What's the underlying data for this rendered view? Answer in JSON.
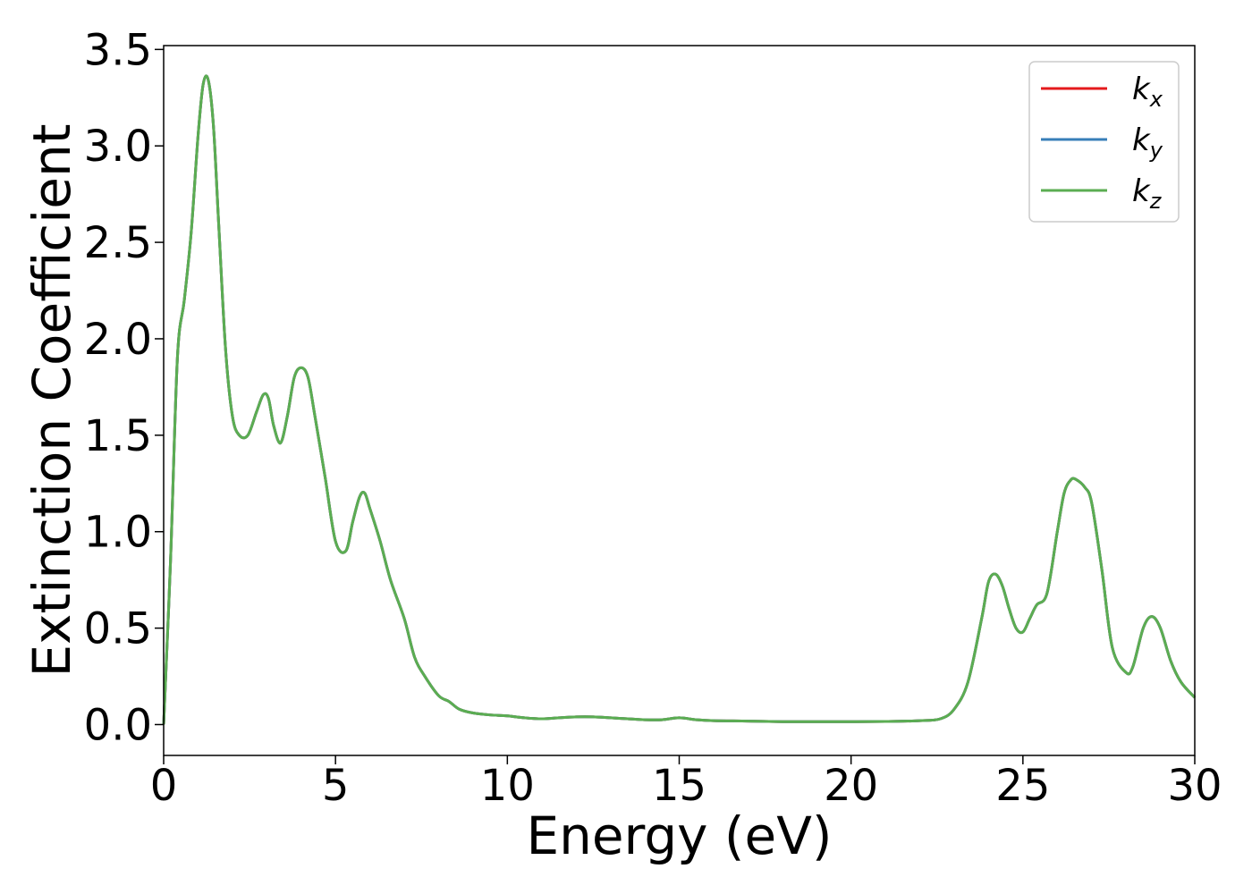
{
  "chart_data": {
    "type": "line",
    "title": "",
    "xlabel": "Energy (eV)",
    "ylabel": "Extinction Coefficient",
    "xlim": [
      0,
      30
    ],
    "ylim": [
      -0.16,
      3.52
    ],
    "xticks": [
      "0",
      "5",
      "10",
      "15",
      "20",
      "25",
      "30"
    ],
    "yticks": [
      "0.0",
      "0.5",
      "1.0",
      "1.5",
      "2.0",
      "2.5",
      "3.0",
      "3.5"
    ],
    "grid": false,
    "legend_position": "top-right",
    "series": [
      {
        "name": "k",
        "sub": "x",
        "color": "#e41a1c",
        "x": [
          0,
          0.2,
          0.4,
          0.6,
          0.8,
          1.0,
          1.15,
          1.3,
          1.45,
          1.6,
          1.8,
          2.0,
          2.2,
          2.45,
          2.7,
          2.9,
          3.05,
          3.2,
          3.4,
          3.6,
          3.8,
          4.0,
          4.2,
          4.4,
          4.7,
          5.0,
          5.3,
          5.5,
          5.7,
          5.85,
          6.0,
          6.3,
          6.6,
          7.0,
          7.3,
          7.6,
          8.0,
          8.3,
          8.6,
          9.0,
          9.5,
          10.0,
          10.5,
          11.0,
          11.5,
          12.0,
          12.5,
          13.0,
          13.5,
          14.0,
          14.5,
          15.0,
          15.5,
          16.0,
          17.0,
          18.0,
          19.0,
          20.0,
          21.0,
          22.0,
          22.6,
          23.0,
          23.4,
          23.8,
          24.0,
          24.2,
          24.4,
          24.6,
          24.8,
          25.0,
          25.2,
          25.4,
          25.7,
          26.0,
          26.2,
          26.4,
          26.55,
          26.8,
          27.0,
          27.3,
          27.6,
          28.0,
          28.2,
          28.5,
          28.75,
          29.0,
          29.3,
          29.6,
          30.0
        ],
        "values": [
          0.0,
          0.85,
          1.9,
          2.2,
          2.55,
          3.05,
          3.32,
          3.34,
          3.1,
          2.6,
          1.95,
          1.6,
          1.5,
          1.5,
          1.62,
          1.71,
          1.69,
          1.55,
          1.46,
          1.6,
          1.8,
          1.85,
          1.8,
          1.6,
          1.28,
          0.95,
          0.9,
          1.05,
          1.18,
          1.2,
          1.12,
          0.95,
          0.75,
          0.55,
          0.35,
          0.25,
          0.15,
          0.12,
          0.08,
          0.06,
          0.05,
          0.045,
          0.035,
          0.03,
          0.035,
          0.04,
          0.04,
          0.035,
          0.03,
          0.025,
          0.025,
          0.035,
          0.025,
          0.02,
          0.018,
          0.015,
          0.015,
          0.015,
          0.016,
          0.02,
          0.03,
          0.08,
          0.22,
          0.55,
          0.74,
          0.78,
          0.72,
          0.6,
          0.5,
          0.48,
          0.55,
          0.62,
          0.68,
          1.0,
          1.2,
          1.27,
          1.27,
          1.23,
          1.15,
          0.8,
          0.4,
          0.27,
          0.3,
          0.5,
          0.56,
          0.5,
          0.33,
          0.22,
          0.14
        ]
      },
      {
        "name": "k",
        "sub": "y",
        "color": "#377eb8",
        "x": [
          0,
          0.2,
          0.4,
          0.6,
          0.8,
          1.0,
          1.15,
          1.3,
          1.45,
          1.6,
          1.8,
          2.0,
          2.2,
          2.45,
          2.7,
          2.9,
          3.05,
          3.2,
          3.4,
          3.6,
          3.8,
          4.0,
          4.2,
          4.4,
          4.7,
          5.0,
          5.3,
          5.5,
          5.7,
          5.85,
          6.0,
          6.3,
          6.6,
          7.0,
          7.3,
          7.6,
          8.0,
          8.3,
          8.6,
          9.0,
          9.5,
          10.0,
          10.5,
          11.0,
          11.5,
          12.0,
          12.5,
          13.0,
          13.5,
          14.0,
          14.5,
          15.0,
          15.5,
          16.0,
          17.0,
          18.0,
          19.0,
          20.0,
          21.0,
          22.0,
          22.6,
          23.0,
          23.4,
          23.8,
          24.0,
          24.2,
          24.4,
          24.6,
          24.8,
          25.0,
          25.2,
          25.4,
          25.7,
          26.0,
          26.2,
          26.4,
          26.55,
          26.8,
          27.0,
          27.3,
          27.6,
          28.0,
          28.2,
          28.5,
          28.75,
          29.0,
          29.3,
          29.6,
          30.0
        ],
        "values": [
          0.0,
          0.85,
          1.9,
          2.2,
          2.55,
          3.05,
          3.32,
          3.34,
          3.1,
          2.6,
          1.95,
          1.6,
          1.5,
          1.5,
          1.62,
          1.71,
          1.69,
          1.55,
          1.46,
          1.6,
          1.8,
          1.85,
          1.8,
          1.6,
          1.28,
          0.95,
          0.9,
          1.05,
          1.18,
          1.2,
          1.12,
          0.95,
          0.75,
          0.55,
          0.35,
          0.25,
          0.15,
          0.12,
          0.08,
          0.06,
          0.05,
          0.045,
          0.035,
          0.03,
          0.035,
          0.04,
          0.04,
          0.035,
          0.03,
          0.025,
          0.025,
          0.035,
          0.025,
          0.02,
          0.018,
          0.015,
          0.015,
          0.015,
          0.016,
          0.02,
          0.03,
          0.08,
          0.22,
          0.55,
          0.74,
          0.78,
          0.72,
          0.6,
          0.5,
          0.48,
          0.55,
          0.62,
          0.68,
          1.0,
          1.2,
          1.27,
          1.27,
          1.23,
          1.15,
          0.8,
          0.4,
          0.27,
          0.3,
          0.5,
          0.56,
          0.5,
          0.33,
          0.22,
          0.14
        ]
      },
      {
        "name": "k",
        "sub": "z",
        "color": "#5bad52",
        "x": [
          0,
          0.2,
          0.4,
          0.6,
          0.8,
          1.0,
          1.15,
          1.3,
          1.45,
          1.6,
          1.8,
          2.0,
          2.2,
          2.45,
          2.7,
          2.9,
          3.05,
          3.2,
          3.4,
          3.6,
          3.8,
          4.0,
          4.2,
          4.4,
          4.7,
          5.0,
          5.3,
          5.5,
          5.7,
          5.85,
          6.0,
          6.3,
          6.6,
          7.0,
          7.3,
          7.6,
          8.0,
          8.3,
          8.6,
          9.0,
          9.5,
          10.0,
          10.5,
          11.0,
          11.5,
          12.0,
          12.5,
          13.0,
          13.5,
          14.0,
          14.5,
          15.0,
          15.5,
          16.0,
          17.0,
          18.0,
          19.0,
          20.0,
          21.0,
          22.0,
          22.6,
          23.0,
          23.4,
          23.8,
          24.0,
          24.2,
          24.4,
          24.6,
          24.8,
          25.0,
          25.2,
          25.4,
          25.7,
          26.0,
          26.2,
          26.4,
          26.55,
          26.8,
          27.0,
          27.3,
          27.6,
          28.0,
          28.2,
          28.5,
          28.75,
          29.0,
          29.3,
          29.6,
          30.0
        ],
        "values": [
          0.0,
          0.85,
          1.9,
          2.2,
          2.55,
          3.05,
          3.32,
          3.34,
          3.1,
          2.6,
          1.95,
          1.6,
          1.5,
          1.5,
          1.62,
          1.71,
          1.69,
          1.55,
          1.46,
          1.6,
          1.8,
          1.85,
          1.8,
          1.6,
          1.28,
          0.95,
          0.9,
          1.05,
          1.18,
          1.2,
          1.12,
          0.95,
          0.75,
          0.55,
          0.35,
          0.25,
          0.15,
          0.12,
          0.08,
          0.06,
          0.05,
          0.045,
          0.035,
          0.03,
          0.035,
          0.04,
          0.04,
          0.035,
          0.03,
          0.025,
          0.025,
          0.035,
          0.025,
          0.02,
          0.018,
          0.015,
          0.015,
          0.015,
          0.016,
          0.02,
          0.03,
          0.08,
          0.22,
          0.55,
          0.74,
          0.78,
          0.72,
          0.6,
          0.5,
          0.48,
          0.55,
          0.62,
          0.68,
          1.0,
          1.2,
          1.27,
          1.27,
          1.23,
          1.15,
          0.8,
          0.4,
          0.27,
          0.3,
          0.5,
          0.56,
          0.5,
          0.33,
          0.22,
          0.14
        ]
      }
    ]
  }
}
